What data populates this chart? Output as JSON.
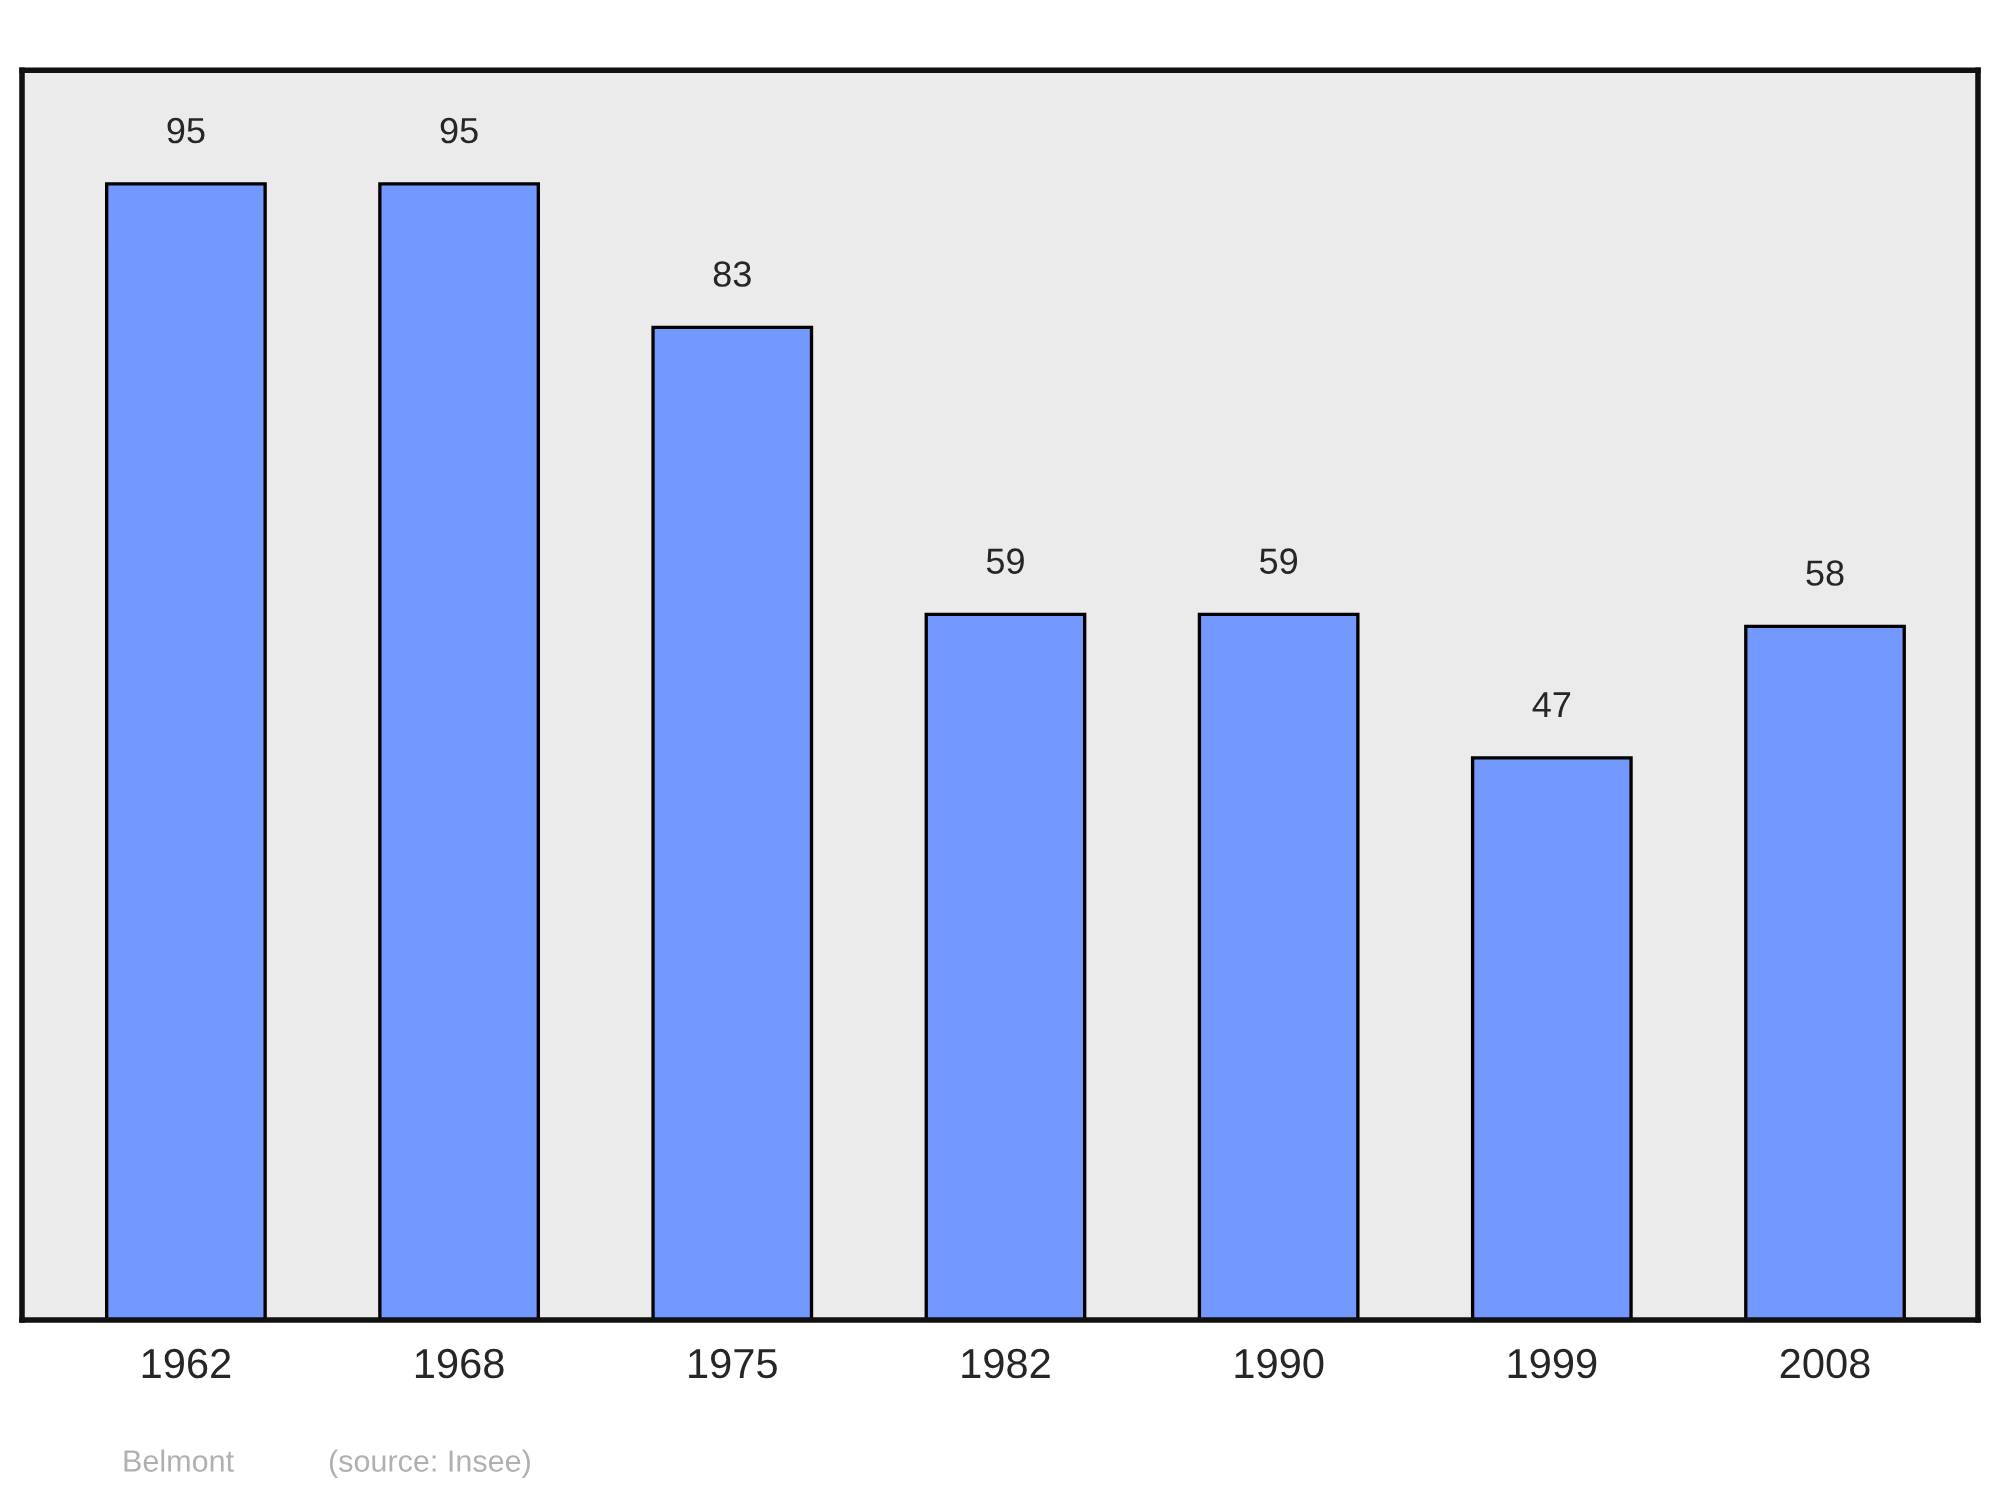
{
  "chart_data": {
    "type": "bar",
    "categories": [
      "1962",
      "1968",
      "1975",
      "1982",
      "1990",
      "1999",
      "2008"
    ],
    "values": [
      95,
      95,
      83,
      59,
      59,
      47,
      58
    ],
    "color": "#7399ff",
    "ylim": [
      0,
      104.5
    ],
    "tick_labels": "x",
    "data_labels": true,
    "grid": false,
    "annotations": [
      "Belmont",
      "(source: Insee)"
    ]
  }
}
